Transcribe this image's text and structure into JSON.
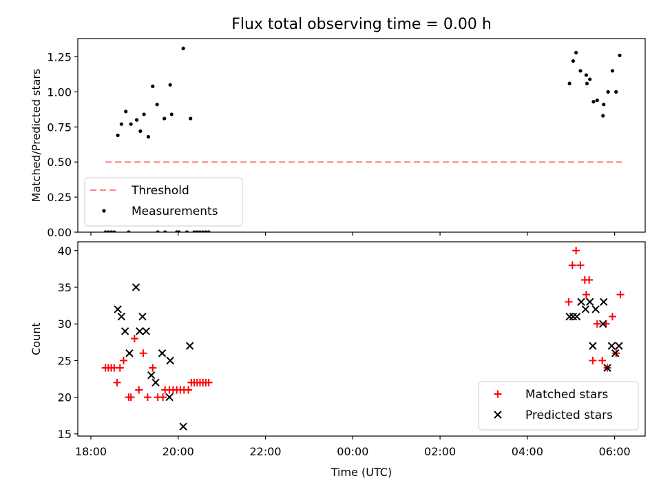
{
  "figure_title": "Flux total observing time = 0.00 h",
  "chart_data": [
    {
      "type": "scatter",
      "title": "Flux total observing time = 0.00 h",
      "xlabel": "",
      "ylabel": "Matched/Predicted stars",
      "xlim_hours": [
        -6.3,
        6.7
      ],
      "ylim": [
        0,
        1.38
      ],
      "xticks": [
        {
          "h": -6,
          "label": "18:00"
        },
        {
          "h": -4,
          "label": "20:00"
        },
        {
          "h": -2,
          "label": "22:00"
        },
        {
          "h": 0,
          "label": "00:00"
        },
        {
          "h": 2,
          "label": "02:00"
        },
        {
          "h": 4,
          "label": "04:00"
        },
        {
          "h": 6,
          "label": "06:00"
        }
      ],
      "yticks": [
        0.0,
        0.25,
        0.5,
        0.75,
        1.0,
        1.25
      ],
      "ytick_labels": [
        "0.00",
        "0.25",
        "0.50",
        "0.75",
        "1.00",
        "1.25"
      ],
      "show_xtick_labels": false,
      "legend_position": "lower-left",
      "threshold": {
        "name": "Threshold",
        "color": "#ff7f7f",
        "value": 0.5,
        "x_range": [
          "18:20",
          "06:10"
        ]
      },
      "series": [
        {
          "name": "Measurements",
          "color": "#000000",
          "marker": "dot",
          "points": [
            {
              "x": "18:37",
              "y": 0.69
            },
            {
              "x": "18:42",
              "y": 0.77
            },
            {
              "x": "18:48",
              "y": 0.86
            },
            {
              "x": "18:55",
              "y": 0.77
            },
            {
              "x": "19:03",
              "y": 0.8
            },
            {
              "x": "19:08",
              "y": 0.72
            },
            {
              "x": "19:13",
              "y": 0.84
            },
            {
              "x": "19:19",
              "y": 0.68
            },
            {
              "x": "19:25",
              "y": 1.04
            },
            {
              "x": "19:31",
              "y": 0.91
            },
            {
              "x": "19:41",
              "y": 0.81
            },
            {
              "x": "19:49",
              "y": 1.05
            },
            {
              "x": "19:51",
              "y": 0.84
            },
            {
              "x": "20:07",
              "y": 1.31
            },
            {
              "x": "20:17",
              "y": 0.81
            },
            {
              "x": "18:20",
              "y": 0.0
            },
            {
              "x": "18:24",
              "y": 0.0
            },
            {
              "x": "18:28",
              "y": 0.0
            },
            {
              "x": "18:32",
              "y": 0.0
            },
            {
              "x": "18:52",
              "y": 0.0
            },
            {
              "x": "19:32",
              "y": 0.0
            },
            {
              "x": "19:42",
              "y": 0.0
            },
            {
              "x": "19:58",
              "y": 0.0
            },
            {
              "x": "20:01",
              "y": 0.0
            },
            {
              "x": "20:12",
              "y": 0.0
            },
            {
              "x": "20:22",
              "y": 0.0
            },
            {
              "x": "20:26",
              "y": 0.0
            },
            {
              "x": "20:30",
              "y": 0.0
            },
            {
              "x": "20:34",
              "y": 0.0
            },
            {
              "x": "20:38",
              "y": 0.0
            },
            {
              "x": "20:42",
              "y": 0.0
            },
            {
              "x": "04:58",
              "y": 1.06
            },
            {
              "x": "05:03",
              "y": 1.22
            },
            {
              "x": "05:07",
              "y": 1.28
            },
            {
              "x": "05:13",
              "y": 1.15
            },
            {
              "x": "05:21",
              "y": 1.12
            },
            {
              "x": "05:22",
              "y": 1.06
            },
            {
              "x": "05:26",
              "y": 1.09
            },
            {
              "x": "05:31",
              "y": 0.93
            },
            {
              "x": "05:36",
              "y": 0.94
            },
            {
              "x": "05:44",
              "y": 0.83
            },
            {
              "x": "05:45",
              "y": 0.91
            },
            {
              "x": "05:51",
              "y": 1.0
            },
            {
              "x": "05:57",
              "y": 1.15
            },
            {
              "x": "06:02",
              "y": 1.0
            },
            {
              "x": "06:07",
              "y": 1.26
            }
          ]
        }
      ]
    },
    {
      "type": "scatter",
      "title": "",
      "xlabel": "Time (UTC)",
      "ylabel": "Count",
      "xlim_hours": [
        -6.3,
        6.7
      ],
      "ylim": [
        14.7,
        41.2
      ],
      "xticks": [
        {
          "h": -6,
          "label": "18:00"
        },
        {
          "h": -4,
          "label": "20:00"
        },
        {
          "h": -2,
          "label": "22:00"
        },
        {
          "h": 0,
          "label": "00:00"
        },
        {
          "h": 2,
          "label": "02:00"
        },
        {
          "h": 4,
          "label": "04:00"
        },
        {
          "h": 6,
          "label": "06:00"
        }
      ],
      "yticks": [
        15,
        20,
        25,
        30,
        35,
        40
      ],
      "ytick_labels": [
        "15",
        "20",
        "25",
        "30",
        "35",
        "40"
      ],
      "show_xtick_labels": true,
      "legend_position": "lower-right",
      "series": [
        {
          "name": "Matched stars",
          "color": "#ff0000",
          "marker": "plus",
          "points": [
            {
              "x": "18:20",
              "y": 24
            },
            {
              "x": "18:24",
              "y": 24
            },
            {
              "x": "18:28",
              "y": 24
            },
            {
              "x": "18:32",
              "y": 24
            },
            {
              "x": "18:36",
              "y": 22
            },
            {
              "x": "18:40",
              "y": 24
            },
            {
              "x": "18:45",
              "y": 25
            },
            {
              "x": "18:52",
              "y": 20
            },
            {
              "x": "18:55",
              "y": 20
            },
            {
              "x": "19:00",
              "y": 28
            },
            {
              "x": "19:06",
              "y": 21
            },
            {
              "x": "19:12",
              "y": 26
            },
            {
              "x": "19:18",
              "y": 20
            },
            {
              "x": "19:25",
              "y": 24
            },
            {
              "x": "19:32",
              "y": 20
            },
            {
              "x": "19:39",
              "y": 20
            },
            {
              "x": "19:42",
              "y": 21
            },
            {
              "x": "19:48",
              "y": 21
            },
            {
              "x": "19:53",
              "y": 21
            },
            {
              "x": "19:58",
              "y": 21
            },
            {
              "x": "20:03",
              "y": 21
            },
            {
              "x": "20:08",
              "y": 21
            },
            {
              "x": "20:14",
              "y": 21
            },
            {
              "x": "20:18",
              "y": 22
            },
            {
              "x": "20:22",
              "y": 22
            },
            {
              "x": "20:26",
              "y": 22
            },
            {
              "x": "20:30",
              "y": 22
            },
            {
              "x": "20:34",
              "y": 22
            },
            {
              "x": "20:38",
              "y": 22
            },
            {
              "x": "20:42",
              "y": 22
            },
            {
              "x": "04:57",
              "y": 33
            },
            {
              "x": "05:02",
              "y": 38
            },
            {
              "x": "05:07",
              "y": 40
            },
            {
              "x": "05:13",
              "y": 38
            },
            {
              "x": "05:19",
              "y": 36
            },
            {
              "x": "05:21",
              "y": 34
            },
            {
              "x": "05:25",
              "y": 36
            },
            {
              "x": "05:30",
              "y": 25
            },
            {
              "x": "05:36",
              "y": 30
            },
            {
              "x": "05:43",
              "y": 25
            },
            {
              "x": "05:48",
              "y": 30
            },
            {
              "x": "05:50",
              "y": 24
            },
            {
              "x": "05:57",
              "y": 31
            },
            {
              "x": "06:02",
              "y": 26
            },
            {
              "x": "06:08",
              "y": 34
            }
          ]
        },
        {
          "name": "Predicted stars",
          "color": "#000000",
          "marker": "x",
          "points": [
            {
              "x": "18:37",
              "y": 32
            },
            {
              "x": "18:42",
              "y": 31
            },
            {
              "x": "18:47",
              "y": 29
            },
            {
              "x": "18:53",
              "y": 26
            },
            {
              "x": "19:02",
              "y": 35
            },
            {
              "x": "19:07",
              "y": 29
            },
            {
              "x": "19:11",
              "y": 31
            },
            {
              "x": "19:16",
              "y": 29
            },
            {
              "x": "19:23",
              "y": 23
            },
            {
              "x": "19:29",
              "y": 22
            },
            {
              "x": "19:38",
              "y": 26
            },
            {
              "x": "19:48",
              "y": 20
            },
            {
              "x": "19:49",
              "y": 25
            },
            {
              "x": "20:07",
              "y": 16
            },
            {
              "x": "20:16",
              "y": 27
            },
            {
              "x": "04:58",
              "y": 31
            },
            {
              "x": "05:03",
              "y": 31
            },
            {
              "x": "05:08",
              "y": 31
            },
            {
              "x": "05:14",
              "y": 33
            },
            {
              "x": "05:20",
              "y": 32
            },
            {
              "x": "05:26",
              "y": 33
            },
            {
              "x": "05:30",
              "y": 27
            },
            {
              "x": "05:34",
              "y": 32
            },
            {
              "x": "05:44",
              "y": 30
            },
            {
              "x": "05:45",
              "y": 33
            },
            {
              "x": "05:50",
              "y": 24
            },
            {
              "x": "05:56",
              "y": 27
            },
            {
              "x": "06:01",
              "y": 26
            },
            {
              "x": "06:06",
              "y": 27
            }
          ]
        }
      ]
    }
  ]
}
